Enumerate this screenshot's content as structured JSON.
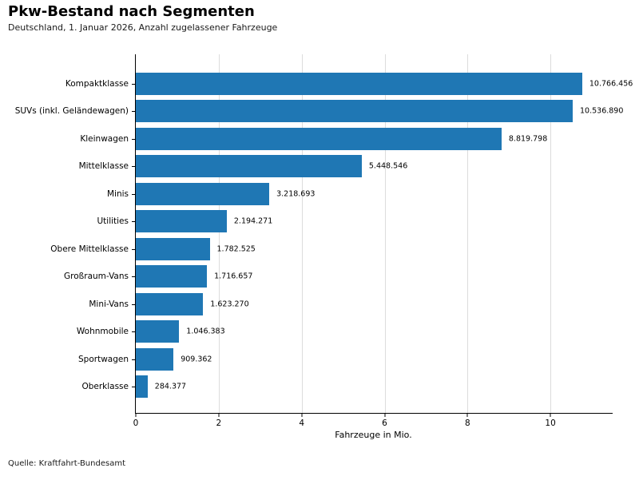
{
  "header": {
    "title": "Pkw-Bestand nach Segmenten",
    "subtitle": "Deutschland, 1. Januar 2026, Anzahl zugelassener Fahrzeuge"
  },
  "footer": {
    "source": "Quelle: Kraftfahrt-Bundesamt"
  },
  "chart_data": {
    "type": "bar",
    "orientation": "horizontal",
    "title": "Pkw-Bestand nach Segmenten",
    "subtitle": "Deutschland, 1. Januar 2026, Anzahl zugelassener Fahrzeuge",
    "xlabel": "Fahrzeuge in Mio.",
    "ylabel": "",
    "categories": [
      "Kompaktklasse",
      "SUVs (inkl. Geländewagen)",
      "Kleinwagen",
      "Mittelklasse",
      "Minis",
      "Utilities",
      "Obere Mittelklasse",
      "Großraum-Vans",
      "Mini-Vans",
      "Wohnmobile",
      "Sportwagen",
      "Oberklasse"
    ],
    "values": [
      10766456,
      10536890,
      8819798,
      5448546,
      3218693,
      2194271,
      1782525,
      1716657,
      1623270,
      1046383,
      909362,
      284377
    ],
    "value_labels": [
      "10.766.456",
      "10.536.890",
      "8.819.798",
      "5.448.546",
      "3.218.693",
      "2.194.271",
      "1.782.525",
      "1.716.657",
      "1.623.270",
      "1.046.383",
      "909.362",
      "284.377"
    ],
    "unit_divisor": 1000000,
    "x_ticks": [
      0,
      2,
      4,
      6,
      8,
      10
    ],
    "xlim": [
      0,
      11.5
    ],
    "grid": "vertical",
    "legend": "none",
    "bar_color": "#1f77b4",
    "grid_color": "#dcdcdc",
    "axis_color": "#000000",
    "source": "Quelle: Kraftfahrt-Bundesamt"
  }
}
